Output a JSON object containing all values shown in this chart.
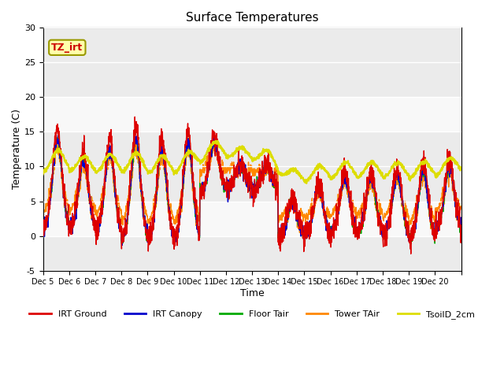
{
  "title": "Surface Temperatures",
  "xlabel": "Time",
  "ylabel": "Temperature (C)",
  "ylim": [
    -5,
    30
  ],
  "series": [
    "IRT Ground",
    "IRT Canopy",
    "Floor Tair",
    "Tower TAir",
    "TsoilD_2cm"
  ],
  "colors": [
    "#dd0000",
    "#0000cc",
    "#00aa00",
    "#ff8800",
    "#dddd00"
  ],
  "annotation_text": "TZ_irt",
  "background_bands": [
    {
      "ymin": -5,
      "ymax": 0,
      "color": "#ebebeb"
    },
    {
      "ymin": 5,
      "ymax": 15,
      "color": "#ebebeb"
    },
    {
      "ymin": 20,
      "ymax": 30,
      "color": "#ebebeb"
    }
  ],
  "xtick_labels": [
    "Dec 5",
    "Dec 6",
    "Dec 7",
    "Dec 8",
    "Dec 9",
    "Dec 10",
    "Dec 11",
    "Dec 12",
    "Dec 13",
    "Dec 14",
    "Dec 15",
    "Dec 16",
    "Dec 17",
    "Dec 18",
    "Dec 19",
    "Dec 20"
  ],
  "ytick_labels": [
    -5,
    0,
    5,
    10,
    15,
    20,
    25,
    30
  ],
  "n_days": 16,
  "pts_per_day": 144
}
